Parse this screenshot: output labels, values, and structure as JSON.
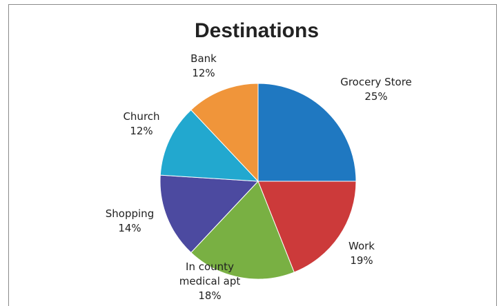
{
  "chart_data": {
    "type": "pie",
    "title": "Destinations",
    "slices": [
      {
        "label_lines": [
          "Grocery Store"
        ],
        "percent_label": "25%",
        "value": 25,
        "color": "#1f78c1"
      },
      {
        "label_lines": [
          "Work"
        ],
        "percent_label": "19%",
        "value": 19,
        "color": "#cc3a3a"
      },
      {
        "label_lines": [
          "In county",
          "medical apt"
        ],
        "percent_label": "18%",
        "value": 18,
        "color": "#79b043"
      },
      {
        "label_lines": [
          "Shopping"
        ],
        "percent_label": "14%",
        "value": 14,
        "color": "#4c4aa0"
      },
      {
        "label_lines": [
          "Church"
        ],
        "percent_label": "12%",
        "value": 12,
        "color": "#22a8cf"
      },
      {
        "label_lines": [
          "Bank"
        ],
        "percent_label": "12%",
        "value": 12,
        "color": "#f0953a"
      }
    ]
  }
}
